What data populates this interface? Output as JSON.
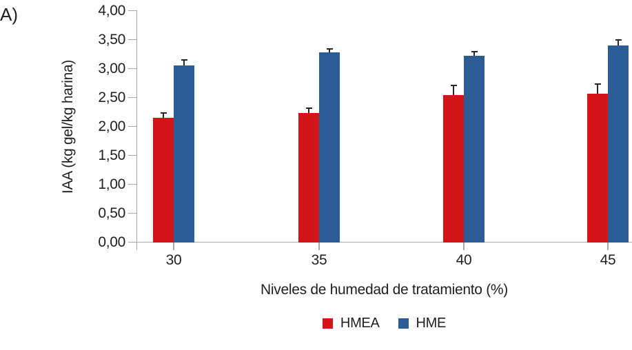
{
  "panel_label": "A)",
  "chart_data": {
    "type": "bar",
    "title": "",
    "categories": [
      "30",
      "35",
      "40",
      "45"
    ],
    "series": [
      {
        "name": "HMEA",
        "color": "#d31419",
        "values": [
          2.15,
          2.24,
          2.55,
          2.57
        ],
        "errors": [
          0.08,
          0.08,
          0.17,
          0.17
        ]
      },
      {
        "name": "HME",
        "color": "#2b5c95",
        "values": [
          3.06,
          3.29,
          3.23,
          3.41
        ],
        "errors": [
          0.09,
          0.06,
          0.07,
          0.1
        ]
      }
    ],
    "xlabel": "Niveles de humedad de tratamiento (%)",
    "ylabel": "IAA (kg gel/kg harina)",
    "ylim": [
      0,
      4
    ],
    "ytick_step": 0.5,
    "ytick_labels": [
      "0,00",
      "0,50",
      "1,00",
      "1,50",
      "2,00",
      "2,50",
      "3,00",
      "3,50",
      "4,00"
    ],
    "grid": false,
    "legend_position": "bottom",
    "axis_color": "#a6a6a6",
    "error_bar_color": "#262626"
  }
}
